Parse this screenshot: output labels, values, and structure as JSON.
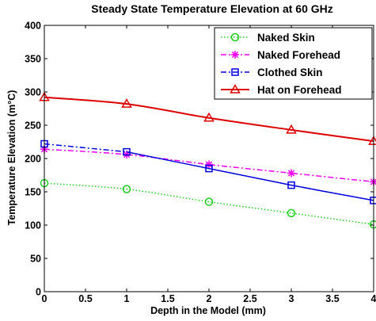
{
  "chart_data": {
    "type": "line",
    "title": "Steady State Temperature Elevation at 60 GHz",
    "xlabel": "Depth in the Model (mm)",
    "ylabel": "Temperature Elevation (m°C)",
    "xlim": [
      0,
      4
    ],
    "ylim": [
      0,
      400
    ],
    "x_ticks": [
      "0",
      "0.5",
      "1",
      "1.5",
      "2",
      "2.5",
      "3",
      "3.5",
      "4"
    ],
    "y_ticks": [
      "0",
      "50",
      "100",
      "150",
      "200",
      "250",
      "300",
      "350",
      "400"
    ],
    "grid": false,
    "legend_position": "top-right",
    "x": [
      0,
      1,
      2,
      3,
      4
    ],
    "series": [
      {
        "name": "Naked Skin",
        "values": [
          163,
          154,
          135,
          118,
          101
        ],
        "color": "#22cc22",
        "marker": "circle",
        "line": "dotted"
      },
      {
        "name": "Naked Forehead",
        "values": [
          214,
          206,
          191,
          178,
          165
        ],
        "color": "#ee00ee",
        "marker": "asterisk",
        "line": "dashdot"
      },
      {
        "name": "Clothed Skin",
        "values": [
          222,
          210,
          185,
          160,
          137
        ],
        "color": "#0000dd",
        "marker": "square",
        "line": "dashdot-solid"
      },
      {
        "name": "Hat on Forehead",
        "values": [
          292,
          282,
          261,
          243,
          226
        ],
        "color": "#dd0000",
        "marker": "triangle",
        "line": "solid"
      }
    ]
  }
}
